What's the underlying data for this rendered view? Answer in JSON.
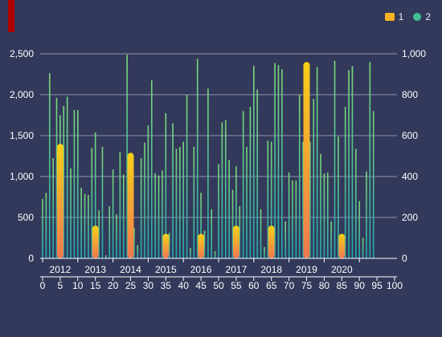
{
  "colors": {
    "background": "#33395a",
    "accent": "#b00000",
    "series1_top": "#f6d018",
    "series1_bottom": "#f07850",
    "series2_top": "#7ad87a",
    "series2_bottom": "#1fa9ad",
    "grid": "#8c93ad",
    "axis": "#ffffff"
  },
  "legend": [
    {
      "name": "1",
      "icon": "rounded-rect-icon",
      "color": "#f5b321"
    },
    {
      "name": "2",
      "icon": "circle-icon",
      "color": "#3fbf96"
    }
  ],
  "chart_data": {
    "type": "bar",
    "grid": true,
    "legend_position": "top-right",
    "title": "",
    "y_left": {
      "min": 0,
      "max": 2500,
      "ticks": [
        "0",
        "500",
        "1,000",
        "1,500",
        "2,000",
        "2,500"
      ]
    },
    "y_right": {
      "min": 0,
      "max": 1000,
      "ticks": [
        "0",
        "200",
        "400",
        "600",
        "800",
        "1,000"
      ]
    },
    "x_top_axis": {
      "labels": [
        "2012",
        "2013",
        "2014",
        "2015",
        "2016",
        "2017",
        "2018",
        "2019",
        "2020"
      ],
      "centers": [
        5,
        15,
        25,
        35,
        45,
        55,
        65,
        75,
        85
      ]
    },
    "x_bottom_axis": {
      "ticks": [
        0,
        5,
        10,
        15,
        20,
        25,
        30,
        35,
        40,
        45,
        50,
        55,
        60,
        65,
        70,
        75,
        80,
        85,
        90,
        95,
        100
      ],
      "labels": [
        "0",
        "5",
        "10",
        "15",
        "20",
        "25",
        "30",
        "35",
        "40",
        "45",
        "50",
        "55",
        "60",
        "65",
        "70",
        "75",
        "80",
        "85",
        "90",
        "95",
        "100"
      ]
    },
    "series": [
      {
        "name": "1",
        "axis": "left",
        "points": [
          {
            "x": 5,
            "y": 1400
          },
          {
            "x": 15,
            "y": 400
          },
          {
            "x": 25,
            "y": 1290
          },
          {
            "x": 35,
            "y": 300
          },
          {
            "x": 45,
            "y": 300
          },
          {
            "x": 55,
            "y": 400
          },
          {
            "x": 65,
            "y": 400
          },
          {
            "x": 75,
            "y": 2400
          },
          {
            "x": 85,
            "y": 300
          }
        ]
      },
      {
        "name": "2",
        "axis": "right",
        "start_x": 0,
        "values": [
          290,
          320,
          905,
          490,
          785,
          700,
          745,
          790,
          440,
          725,
          725,
          345,
          315,
          310,
          540,
          615,
          235,
          545,
          15,
          255,
          435,
          215,
          520,
          410,
          995,
          355,
          150,
          65,
          490,
          565,
          650,
          870,
          415,
          405,
          430,
          710,
          125,
          660,
          535,
          545,
          570,
          800,
          50,
          545,
          975,
          320,
          135,
          830,
          240,
          35,
          460,
          665,
          675,
          480,
          335,
          450,
          255,
          720,
          545,
          740,
          940,
          825,
          240,
          55,
          575,
          570,
          955,
          945,
          925,
          180,
          420,
          380,
          380,
          800,
          570,
          590,
          570,
          780,
          935,
          510,
          415,
          420,
          180,
          965,
          595,
          70,
          740,
          920,
          940,
          535,
          280,
          100,
          425,
          960,
          720
        ]
      }
    ]
  }
}
